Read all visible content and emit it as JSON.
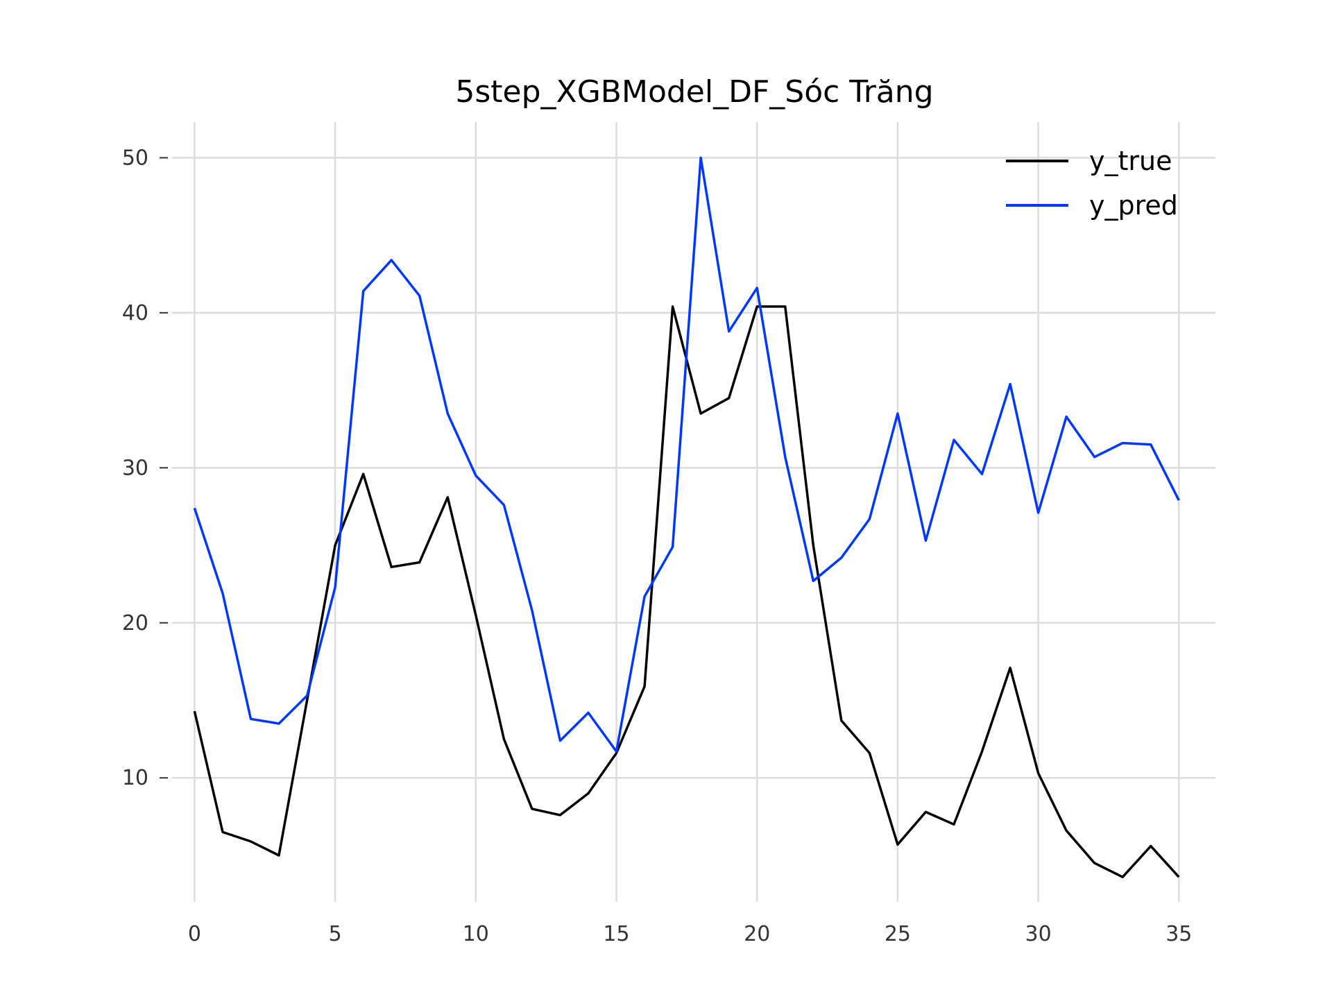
{
  "chart_data": {
    "type": "line",
    "title": "5step_XGBModel_DF_Sóc Trăng",
    "xlabel": "",
    "ylabel": "",
    "x": [
      0,
      1,
      2,
      3,
      4,
      5,
      6,
      7,
      8,
      9,
      10,
      11,
      12,
      13,
      14,
      15,
      16,
      17,
      18,
      19,
      20,
      21,
      22,
      23,
      24,
      25,
      26,
      27,
      28,
      29,
      30,
      31,
      32,
      33,
      34,
      35
    ],
    "xlim": [
      -0.8,
      36.3
    ],
    "ylim": [
      2.0,
      52.3
    ],
    "xticks": [
      0,
      5,
      10,
      15,
      20,
      25,
      30,
      35
    ],
    "xtick_labels": [
      "0",
      "5",
      "10",
      "15",
      "20",
      "25",
      "30",
      "35"
    ],
    "yticks": [
      10,
      20,
      30,
      40,
      50
    ],
    "ytick_labels": [
      "10",
      "20",
      "30",
      "40",
      "50"
    ],
    "grid": true,
    "legend_position": "top-right",
    "series": [
      {
        "name": "y_true",
        "color": "#000000",
        "values": [
          14.3,
          6.5,
          5.9,
          5.0,
          15.0,
          25.0,
          29.6,
          23.6,
          23.9,
          28.1,
          20.5,
          12.5,
          8.0,
          7.6,
          9.0,
          11.6,
          15.9,
          40.4,
          33.5,
          34.5,
          40.4,
          40.4,
          25.0,
          13.7,
          11.6,
          5.7,
          7.8,
          7.0,
          11.7,
          17.1,
          10.3,
          6.6,
          4.5,
          3.6,
          5.6,
          3.6
        ]
      },
      {
        "name": "y_pred",
        "color": "#0038ff",
        "values": [
          27.4,
          21.9,
          13.8,
          13.5,
          15.3,
          22.3,
          41.4,
          43.4,
          41.1,
          33.5,
          29.5,
          27.6,
          20.8,
          12.4,
          14.2,
          11.7,
          21.7,
          24.9,
          50.0,
          38.8,
          41.6,
          30.7,
          22.7,
          24.2,
          26.7,
          33.5,
          25.3,
          31.8,
          29.6,
          35.4,
          27.1,
          33.3,
          30.7,
          31.6,
          31.5,
          27.9
        ]
      }
    ]
  }
}
